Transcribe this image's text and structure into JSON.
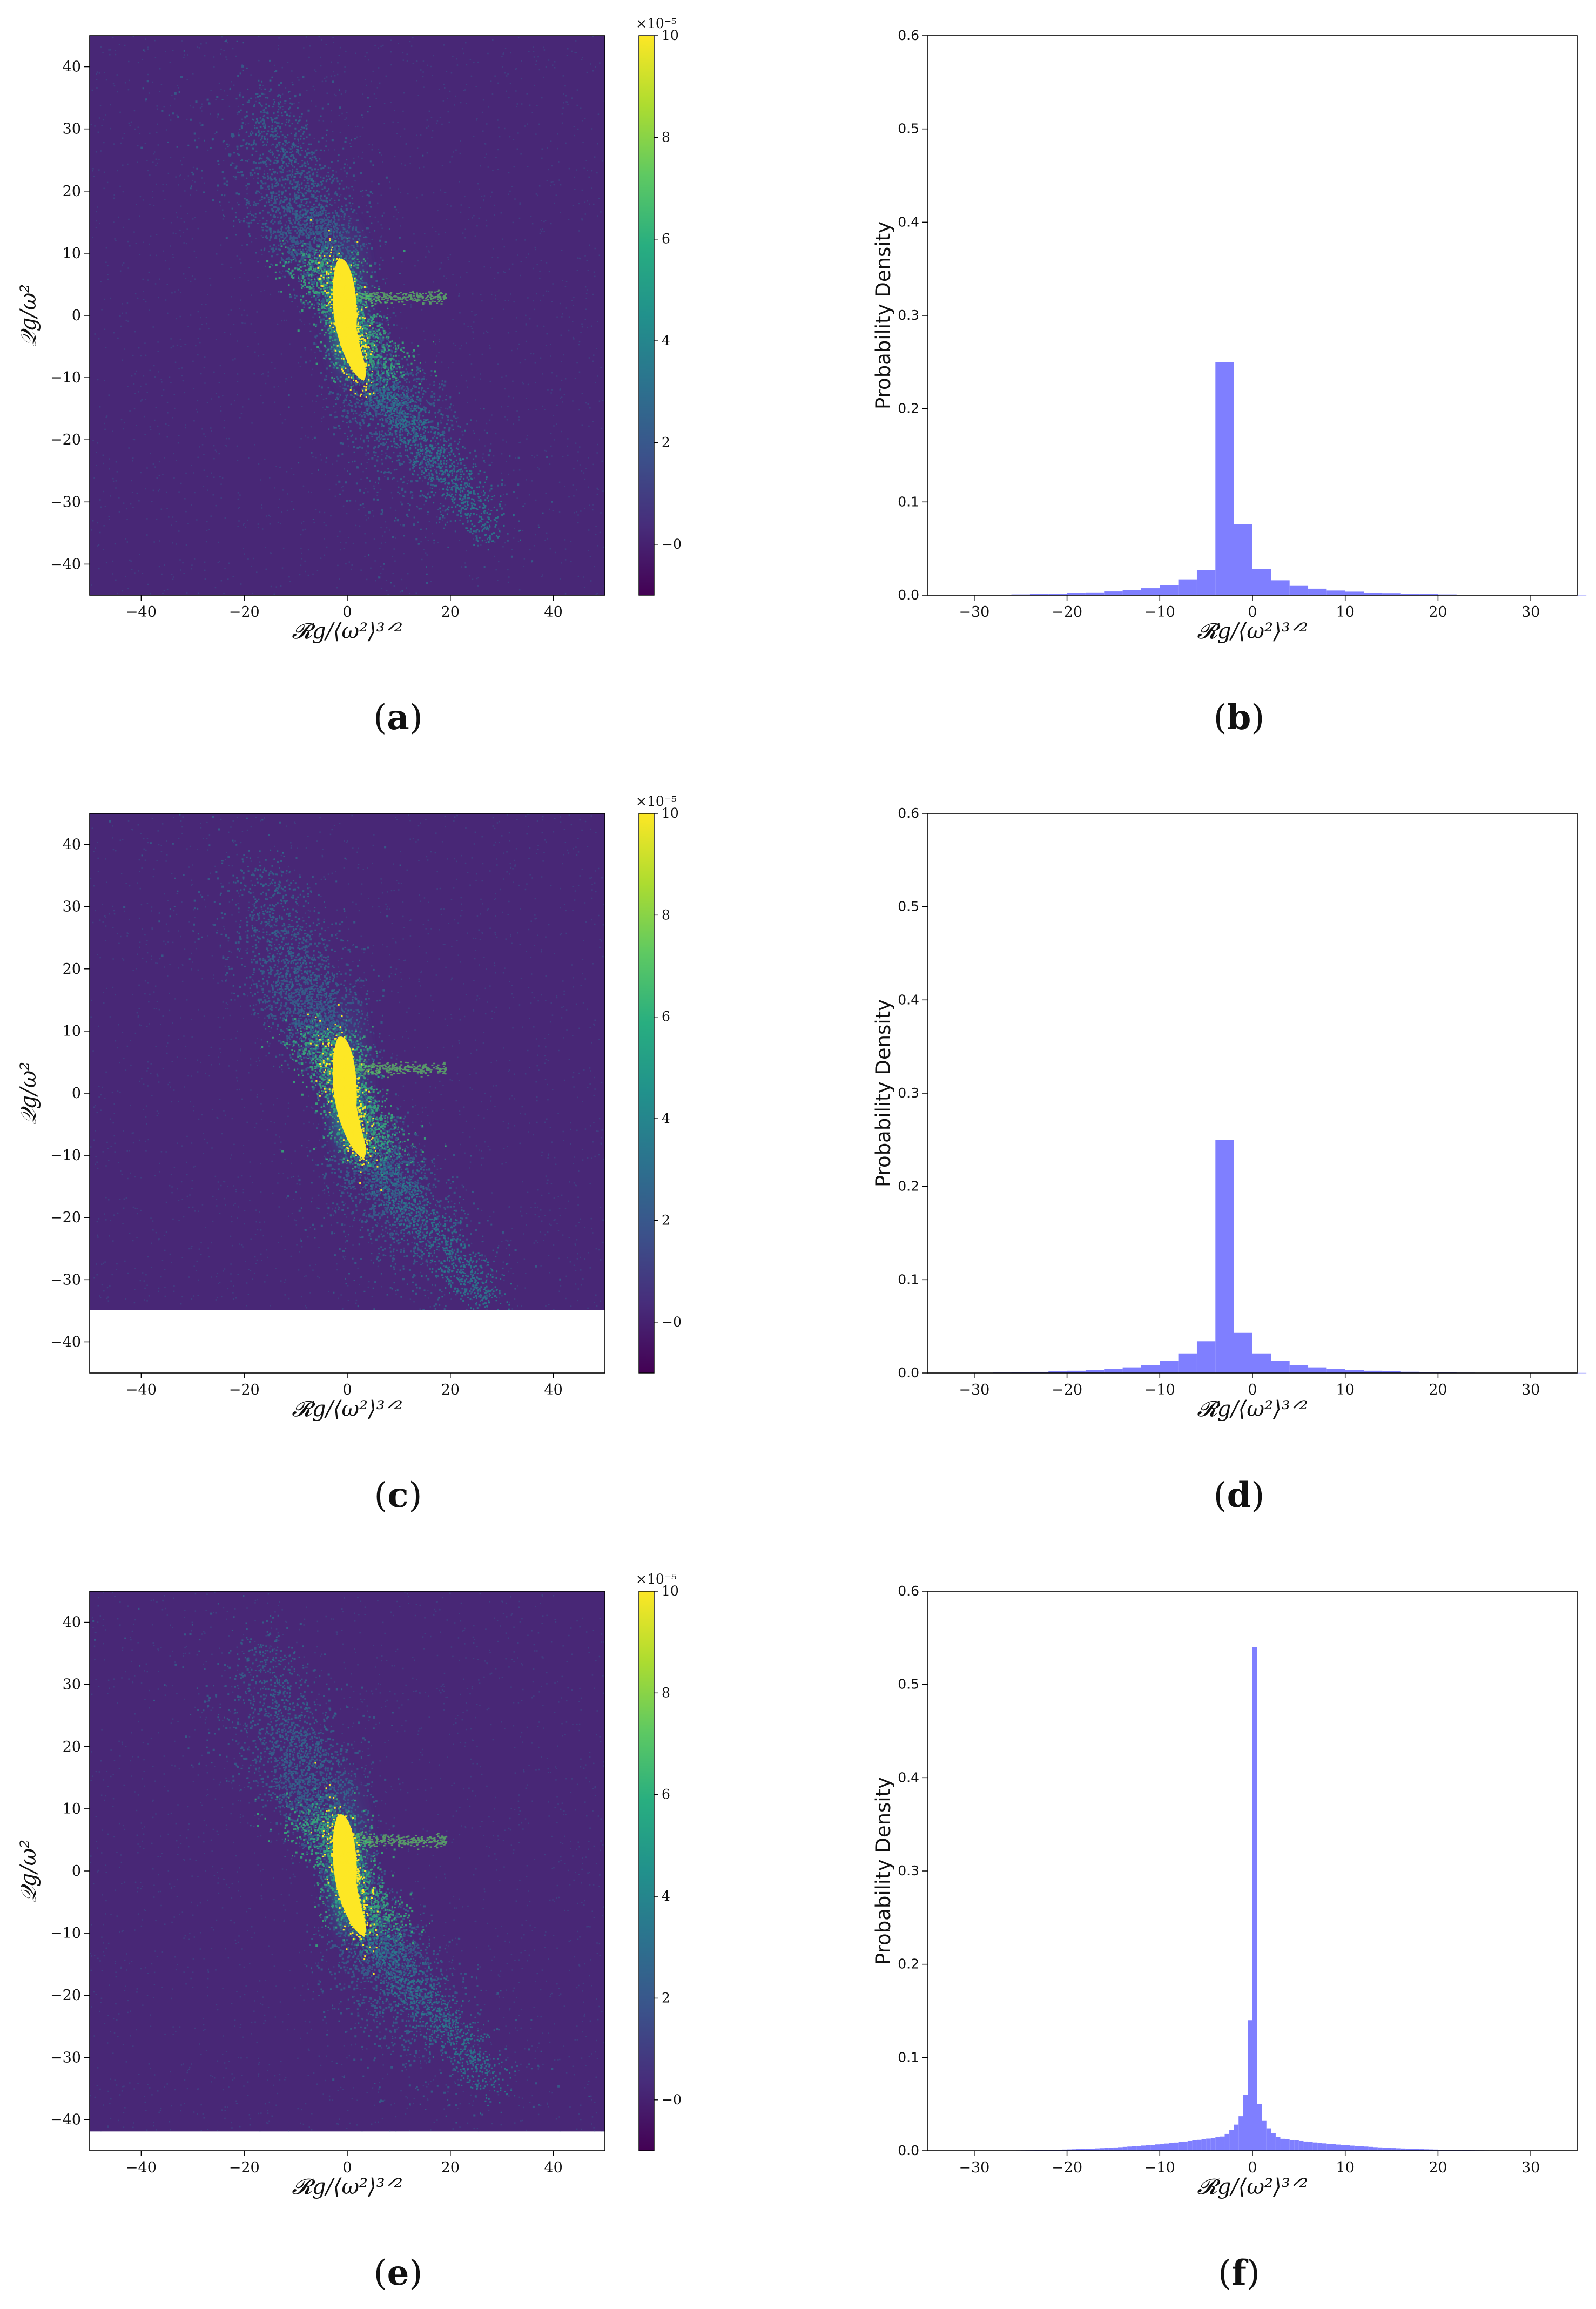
{
  "chart_data": [
    {
      "panel": "a",
      "type": "heatmap",
      "caption": "(a)",
      "xlabel": "𝓡g/⟨ω²⟩³ᐟ²",
      "ylabel": "𝒬g/ω²",
      "xlim": [
        -50,
        50
      ],
      "ylim": [
        -45,
        45
      ],
      "xticks": [
        "−40",
        "−20",
        "0",
        "20",
        "40"
      ],
      "yticks": [
        "−40",
        "−30",
        "−20",
        "−10",
        "0",
        "10",
        "20",
        "30",
        "40"
      ],
      "data_ylim_bottom": -45,
      "colorbar": {
        "min": -1,
        "max": 10,
        "ticks": [
          "−0",
          "2",
          "4",
          "6",
          "8",
          "10"
        ],
        "scale_label": "×10⁻⁵"
      },
      "band_offset": 3
    },
    {
      "panel": "b",
      "type": "bar",
      "caption": "(b)",
      "xlabel": "𝓡g/⟨ω²⟩³ᐟ²",
      "ylabel": "Probability Density",
      "xlim": [
        -35,
        35
      ],
      "ylim": [
        0,
        0.6
      ],
      "xticks": [
        "−30",
        "−20",
        "−10",
        "0",
        "10",
        "20",
        "30"
      ],
      "yticks": [
        "0.0",
        "0.1",
        "0.2",
        "0.3",
        "0.4",
        "0.5",
        "0.6"
      ],
      "bin_start": -32,
      "bin_width": 2,
      "values": [
        0.0002,
        0.0003,
        0.0005,
        0.0008,
        0.0012,
        0.0017,
        0.0023,
        0.003,
        0.004,
        0.0055,
        0.0075,
        0.011,
        0.017,
        0.027,
        0.25,
        0.076,
        0.028,
        0.016,
        0.01,
        0.007,
        0.005,
        0.0038,
        0.0029,
        0.0022,
        0.0017,
        0.0012,
        0.0008,
        0.0005,
        0.0003,
        0.0002,
        0.0001,
        0.0001,
        0.0001,
        0.0001
      ]
    },
    {
      "panel": "c",
      "type": "heatmap",
      "caption": "(c)",
      "xlabel": "𝓡g/⟨ω²⟩³ᐟ²",
      "ylabel": "𝒬g/ω²",
      "xlim": [
        -50,
        50
      ],
      "ylim": [
        -45,
        45
      ],
      "xticks": [
        "−40",
        "−20",
        "0",
        "20",
        "40"
      ],
      "yticks": [
        "−40",
        "−30",
        "−20",
        "−10",
        "0",
        "10",
        "20",
        "30",
        "40"
      ],
      "data_ylim_bottom": -34.9,
      "colorbar": {
        "min": -1,
        "max": 10,
        "ticks": [
          "−0",
          "2",
          "4",
          "6",
          "8",
          "10"
        ],
        "scale_label": "×10⁻⁵"
      },
      "band_offset": 4
    },
    {
      "panel": "d",
      "type": "bar",
      "caption": "(d)",
      "xlabel": "𝓡g/⟨ω²⟩³ᐟ²",
      "ylabel": "Probability Density",
      "xlim": [
        -35,
        35
      ],
      "ylim": [
        0,
        0.6
      ],
      "xticks": [
        "−30",
        "−20",
        "−10",
        "0",
        "10",
        "20",
        "30"
      ],
      "yticks": [
        "0.0",
        "0.1",
        "0.2",
        "0.3",
        "0.4",
        "0.5",
        "0.6"
      ],
      "bin_start": -32,
      "bin_width": 2,
      "values": [
        0.0002,
        0.0003,
        0.0005,
        0.0008,
        0.0012,
        0.0017,
        0.0024,
        0.0032,
        0.0045,
        0.006,
        0.0085,
        0.013,
        0.021,
        0.034,
        0.25,
        0.043,
        0.021,
        0.013,
        0.0085,
        0.006,
        0.0043,
        0.0032,
        0.0024,
        0.0018,
        0.0013,
        0.0009,
        0.0006,
        0.0004,
        0.0003,
        0.0002,
        0.0001,
        0.0001,
        0.0001,
        0.0001
      ]
    },
    {
      "panel": "e",
      "type": "heatmap",
      "caption": "(e)",
      "xlabel": "𝓡g/⟨ω²⟩³ᐟ²",
      "ylabel": "𝒬g/ω²",
      "xlim": [
        -50,
        50
      ],
      "ylim": [
        -45,
        45
      ],
      "xticks": [
        "−40",
        "−20",
        "0",
        "20",
        "40"
      ],
      "yticks": [
        "−40",
        "−30",
        "−20",
        "−10",
        "0",
        "10",
        "20",
        "30",
        "40"
      ],
      "data_ylim_bottom": -41.9,
      "colorbar": {
        "min": -1,
        "max": 10,
        "ticks": [
          "−0",
          "2",
          "4",
          "6",
          "8",
          "10"
        ],
        "scale_label": "×10⁻⁵"
      },
      "band_offset": 5
    },
    {
      "panel": "f",
      "type": "bar",
      "caption": "(f)",
      "xlabel": "𝓡g/⟨ω²⟩³ᐟ²",
      "ylabel": "Probability Density",
      "xlim": [
        -35,
        35
      ],
      "ylim": [
        0,
        0.6
      ],
      "xticks": [
        "−30",
        "−20",
        "−10",
        "0",
        "10",
        "20",
        "30"
      ],
      "yticks": [
        "0.0",
        "0.1",
        "0.2",
        "0.3",
        "0.4",
        "0.5",
        "0.6"
      ],
      "bin_start": -3,
      "bin_width": 0.5,
      "values": [
        0.018,
        0.022,
        0.028,
        0.037,
        0.06,
        0.14,
        0.54,
        0.05,
        0.032,
        0.024,
        0.019,
        0.015
      ],
      "tails": {
        "left_start": -33,
        "right_end": 33,
        "edge_value": 0.0001,
        "near_value": 0.016
      }
    }
  ]
}
